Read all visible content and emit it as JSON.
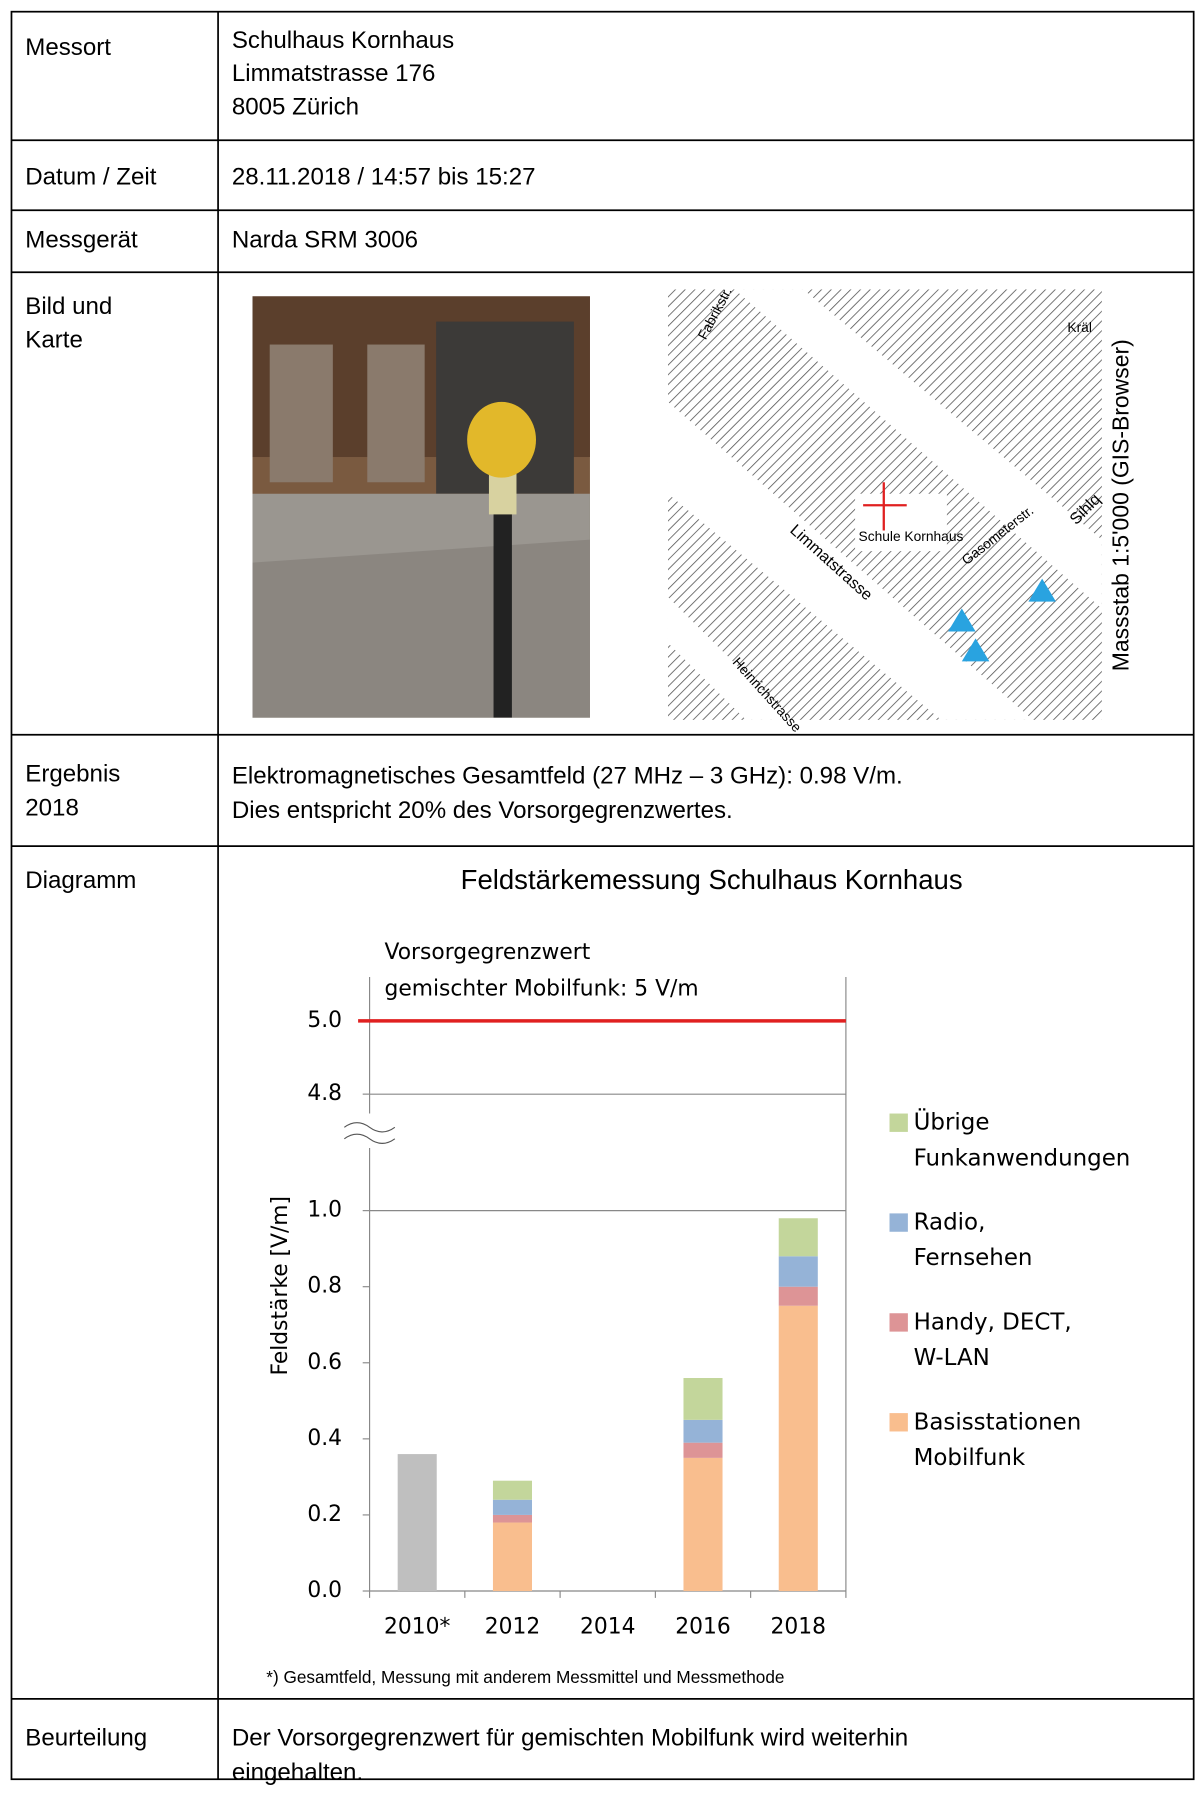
{
  "rows": [
    {
      "label": [
        "Messort"
      ],
      "lines": [
        "Schulhaus Kornhaus",
        "Limmatstrasse 176",
        "8005 Zürich"
      ]
    },
    {
      "label": [
        "Datum / Zeit"
      ],
      "lines": [
        "28.11.2018 / 14:57 bis 15:27"
      ]
    },
    {
      "label": [
        "Messgerät"
      ],
      "lines": [
        "Narda SRM 3006"
      ]
    },
    {
      "label": [
        "Bild und",
        "Karte"
      ],
      "lines": []
    },
    {
      "label": [
        "Ergebnis",
        "2018"
      ],
      "lines": [
        "Elektromagnetisches Gesamtfeld (27 MHz – 3 GHz): 0.98 V/m.",
        "Dies entspricht 20% des Vorsorgegrenzwertes."
      ]
    },
    {
      "label": [
        "Diagramm"
      ],
      "lines": []
    },
    {
      "label": [
        "Beurteilung"
      ],
      "lines": [
        "Der  Vorsorgegrenzwert für gemischten Mobilfunk wird weiterhin",
        "eingehalten."
      ]
    }
  ],
  "map": {
    "scale": "Massstab 1:5'000 (GIS-Browser)",
    "labels": [
      "Fabrikstr.",
      "Limmatstrasse",
      "Schule Kornhaus",
      "Gasometerstr.",
      "Heinrichstrasse",
      "Sihlq",
      "Kräl"
    ]
  },
  "chart_data": {
    "type": "stacked-bar",
    "title": "Feldstärkemessung Schulhaus Kornhaus",
    "y_label": "Feldstärke [V/m]",
    "categories": [
      "2010*",
      "2012",
      "2014",
      "2016",
      "2018"
    ],
    "series": [
      {
        "color": "#bfbfbf",
        "values": [
          0.36,
          null,
          null,
          null,
          null
        ]
      },
      {
        "name": "Basisstationen Mobilfunk",
        "color": "#f9be8e",
        "values": [
          null,
          0.18,
          null,
          0.35,
          0.75
        ]
      },
      {
        "name": "Handy, DECT, W-LAN",
        "color": "#dd9496",
        "values": [
          null,
          0.02,
          null,
          0.04,
          0.05
        ]
      },
      {
        "name": "Radio, Fernsehen",
        "color": "#95b3d7",
        "values": [
          null,
          0.04,
          null,
          0.06,
          0.08
        ]
      },
      {
        "name": "Übrige Funkanwendungen",
        "color": "#c3d69b",
        "values": [
          null,
          0.05,
          null,
          0.11,
          0.1
        ]
      }
    ],
    "ylim": [
      0,
      1.21
    ],
    "yticks": [
      {
        "value": 0,
        "label": "0.0"
      },
      0.2,
      0.4,
      0.6,
      0.8,
      {
        "value": 1,
        "label": "1.0",
        "grid": true
      }
    ],
    "upper_ylim": [
      4.7,
      5.12
    ],
    "upper_yticks": [
      {
        "value": 4.8,
        "label": "4.8",
        "grid": true
      },
      {
        "value": 5,
        "label": "5.0"
      }
    ],
    "limit": {
      "value": 5,
      "color": "#e02020",
      "label": [
        "Vorsorgegrenzwert",
        "gemischter Mobilfunk: 5 V/m"
      ]
    },
    "footnote": "*) Gesamtfeld, Messung mit anderem Messmittel und Messmethode"
  }
}
